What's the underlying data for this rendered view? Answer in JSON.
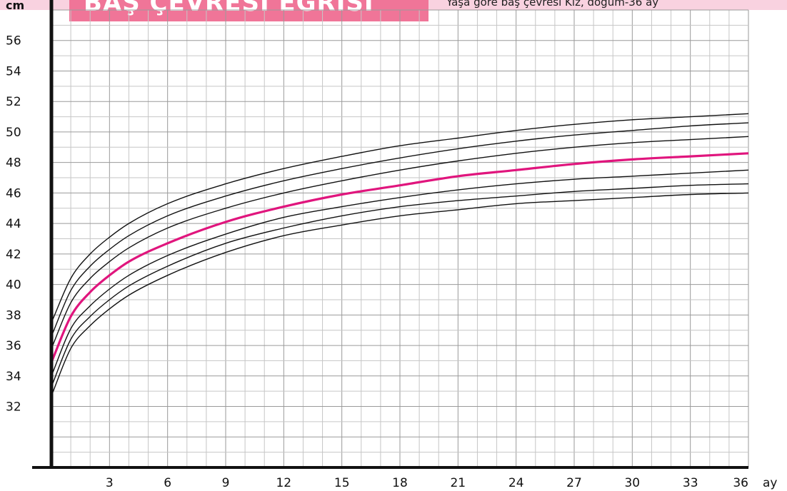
{
  "header": {
    "title": "BAŞ ÇEVRESİ EĞRİSİ",
    "subtitle": "Yaşa göre baş çevresi Kız, doğum-36 ay",
    "title_color": "#f07598",
    "band_color": "#f9d2e0"
  },
  "chart_data": {
    "type": "line",
    "title": "BAŞ ÇEVRESİ EĞRİSİ",
    "subtitle": "Yaşa göre baş çevresi Kız, doğum-36 ay",
    "xlabel": "ay",
    "ylabel": "cm",
    "xlim": [
      0,
      36
    ],
    "ylim": [
      28,
      58
    ],
    "x_ticks": [
      3,
      6,
      9,
      12,
      15,
      18,
      21,
      24,
      27,
      30,
      33,
      36
    ],
    "y_ticks": [
      32,
      34,
      36,
      38,
      40,
      42,
      44,
      46,
      48,
      50,
      52,
      54,
      56
    ],
    "grid": true,
    "x": [
      0,
      1,
      2,
      3,
      4,
      6,
      9,
      12,
      15,
      18,
      21,
      24,
      27,
      30,
      33,
      36
    ],
    "series": [
      {
        "color": "#111111",
        "values": [
          32.7,
          35.8,
          37.3,
          38.4,
          39.3,
          40.6,
          42.1,
          43.2,
          43.9,
          44.5,
          44.9,
          45.3,
          45.5,
          45.7,
          45.9,
          46.0
        ]
      },
      {
        "color": "#111111",
        "values": [
          33.3,
          36.4,
          37.9,
          39.0,
          39.9,
          41.2,
          42.7,
          43.7,
          44.5,
          45.1,
          45.5,
          45.8,
          46.1,
          46.3,
          46.5,
          46.6
        ]
      },
      {
        "color": "#111111",
        "values": [
          34.0,
          37.1,
          38.6,
          39.7,
          40.6,
          41.9,
          43.3,
          44.4,
          45.1,
          45.7,
          46.2,
          46.6,
          46.9,
          47.1,
          47.3,
          47.5
        ]
      },
      {
        "color": "#e0157d",
        "values": [
          34.9,
          37.9,
          39.5,
          40.6,
          41.5,
          42.7,
          44.1,
          45.1,
          45.9,
          46.5,
          47.1,
          47.5,
          47.9,
          48.2,
          48.4,
          48.6
        ]
      },
      {
        "color": "#111111",
        "values": [
          35.8,
          38.8,
          40.4,
          41.5,
          42.4,
          43.7,
          45.0,
          46.0,
          46.8,
          47.5,
          48.1,
          48.6,
          49.0,
          49.3,
          49.5,
          49.7
        ]
      },
      {
        "color": "#111111",
        "values": [
          36.6,
          39.6,
          41.2,
          42.3,
          43.2,
          44.5,
          45.8,
          46.8,
          47.6,
          48.3,
          48.9,
          49.4,
          49.8,
          50.1,
          50.4,
          50.6
        ]
      },
      {
        "color": "#111111",
        "values": [
          37.5,
          40.4,
          42.0,
          43.1,
          44.0,
          45.3,
          46.6,
          47.6,
          48.4,
          49.1,
          49.6,
          50.1,
          50.5,
          50.8,
          51.0,
          51.2
        ]
      }
    ]
  }
}
